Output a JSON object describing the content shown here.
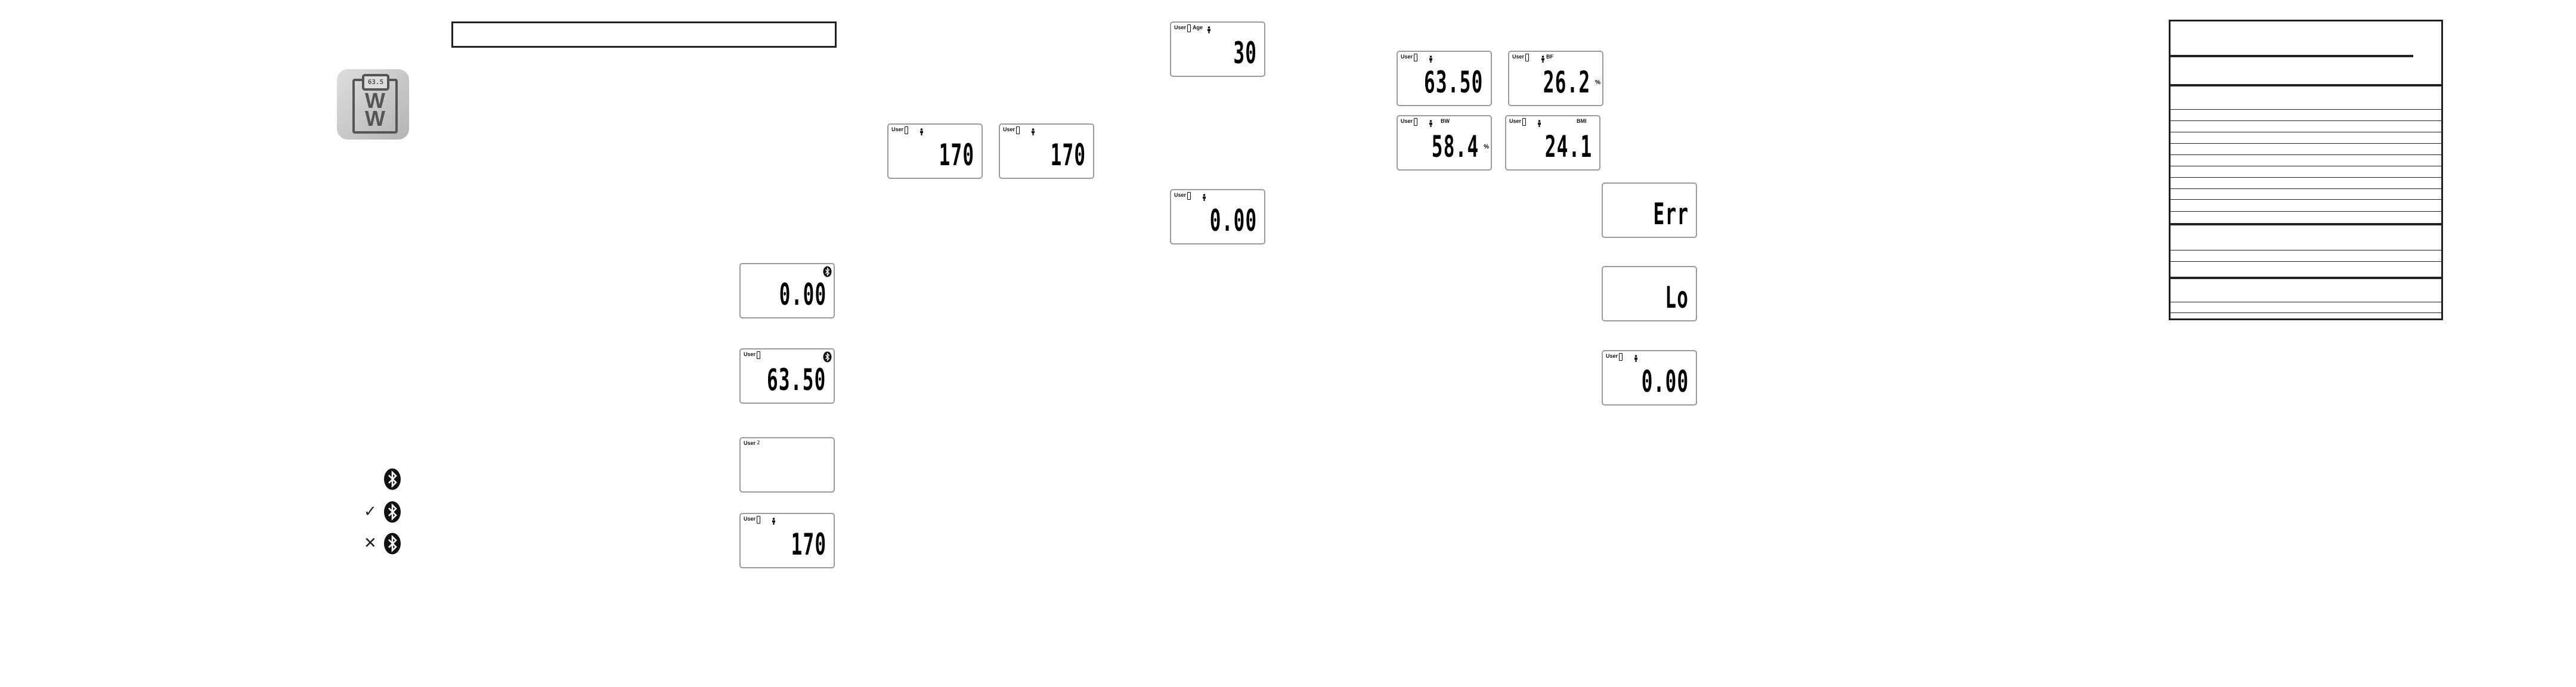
{
  "logo": {
    "screen_text": "63.5",
    "letters": "W W"
  },
  "left_column_displays": [
    {
      "value": "0.00",
      "bluetooth": true
    },
    {
      "user_label": "User",
      "value": "63.50",
      "bluetooth": true
    },
    {
      "user_label": "User",
      "user_digit": "2",
      "value": ""
    },
    {
      "user_label": "User",
      "person": true,
      "value": "170"
    }
  ],
  "height_displays": [
    {
      "user_label": "User",
      "person": true,
      "value": "170"
    },
    {
      "user_label": "User",
      "person": true,
      "value": "170"
    }
  ],
  "age_display": {
    "user_label": "User",
    "label": "Age",
    "person": true,
    "value": "30"
  },
  "zero_display": {
    "user_label": "User",
    "person": true,
    "value": "0.00"
  },
  "results_displays": [
    {
      "user_label": "User",
      "person": true,
      "value": "63.50"
    },
    {
      "user_label": "User",
      "person": true,
      "label": "BF",
      "value": "26.2",
      "unit": "%"
    },
    {
      "user_label": "User",
      "person": true,
      "label": "BW",
      "value": "58.4",
      "unit": "%"
    },
    {
      "user_label": "User",
      "person": true,
      "label": "BMI",
      "value": "24.1"
    }
  ],
  "error_displays": [
    {
      "value": "Err"
    },
    {
      "value": "Lo"
    },
    {
      "user_label": "User",
      "person": true,
      "value": "0.00"
    }
  ],
  "bluetooth_states": [
    {
      "icon": "bluetooth-icon",
      "prefix": ""
    },
    {
      "icon": "bluetooth-icon",
      "prefix": "✓"
    },
    {
      "icon": "bluetooth-icon",
      "prefix": "✕"
    }
  ],
  "colors": {
    "ink": "#222222",
    "lcd_border": "#9a9a9a",
    "logo_bg": "#c4c4c4"
  }
}
